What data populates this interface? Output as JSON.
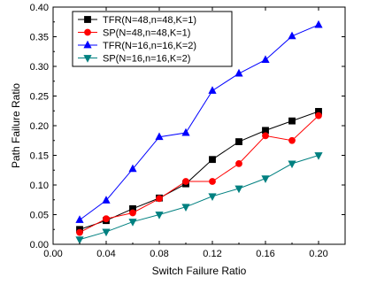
{
  "chart_data": {
    "type": "line",
    "xlabel": "Switch Failure Ratio",
    "ylabel": "Path Failure Ratio",
    "xlim": [
      0.0,
      0.22
    ],
    "ylim": [
      0.0,
      0.4
    ],
    "x_ticks": [
      "0.00",
      "0.04",
      "0.08",
      "0.12",
      "0.16",
      "0.20"
    ],
    "y_ticks": [
      "0.00",
      "0.05",
      "0.10",
      "0.15",
      "0.20",
      "0.25",
      "0.30",
      "0.35",
      "0.40"
    ],
    "grid": false,
    "legend_position": "top-left",
    "x": [
      0.02,
      0.04,
      0.06,
      0.08,
      0.1,
      0.12,
      0.14,
      0.16,
      0.18,
      0.2
    ],
    "series": [
      {
        "name": "TFR(N=48,n=48,K=1)",
        "marker": "square",
        "color": "#000000",
        "values": [
          0.025,
          0.04,
          0.06,
          0.078,
          0.102,
          0.143,
          0.173,
          0.192,
          0.208,
          0.224
        ]
      },
      {
        "name": "SP(N=48,n=48,K=1)",
        "marker": "circle",
        "color": "#ff0000",
        "values": [
          0.02,
          0.043,
          0.053,
          0.077,
          0.106,
          0.106,
          0.136,
          0.183,
          0.175,
          0.217
        ]
      },
      {
        "name": "TFR(N=16,n=16,K=2)",
        "marker": "triangle-up",
        "color": "#0000ff",
        "values": [
          0.041,
          0.074,
          0.127,
          0.181,
          0.188,
          0.259,
          0.288,
          0.311,
          0.351,
          0.37
        ]
      },
      {
        "name": "SP(N=16,n=16,K=2)",
        "marker": "triangle-down",
        "color": "#008080",
        "values": [
          0.008,
          0.021,
          0.038,
          0.05,
          0.063,
          0.081,
          0.094,
          0.111,
          0.136,
          0.15
        ]
      }
    ]
  }
}
